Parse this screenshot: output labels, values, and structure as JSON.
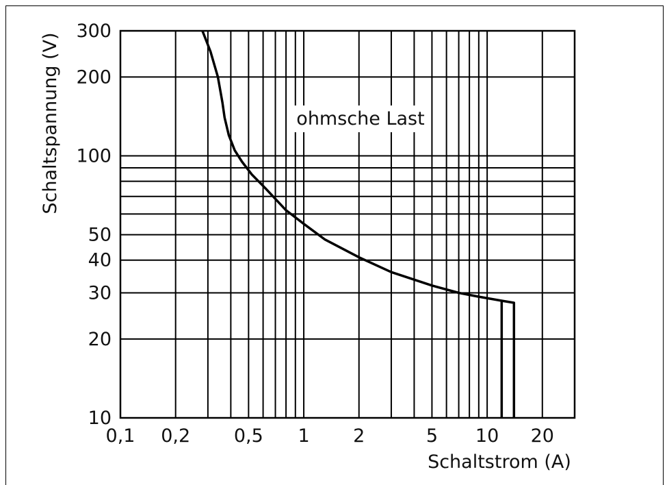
{
  "chart_data": {
    "type": "line",
    "title": "",
    "annotation": "ohmsche Last",
    "xlabel": "Schaltstrom (A)",
    "ylabel": "Schaltspannung (V)",
    "xscale": "log",
    "yscale": "log",
    "xlim": [
      0.1,
      30
    ],
    "ylim": [
      10,
      300
    ],
    "grid": true,
    "x_tick_labels": [
      "0,1",
      "0,2",
      "0,5",
      "1",
      "2",
      "5",
      "10",
      "20"
    ],
    "x_tick_values": [
      0.1,
      0.2,
      0.5,
      1,
      2,
      5,
      10,
      20
    ],
    "y_tick_labels": [
      "10",
      "20",
      "30",
      "40",
      "50",
      "100",
      "200",
      "300"
    ],
    "y_tick_values": [
      10,
      20,
      30,
      40,
      50,
      100,
      200,
      300
    ],
    "x_grid_values": [
      0.2,
      0.3,
      0.4,
      0.5,
      0.6,
      0.7,
      0.8,
      0.9,
      1,
      2,
      3,
      4,
      5,
      6,
      7,
      8,
      9,
      10,
      20
    ],
    "y_grid_values": [
      20,
      30,
      40,
      50,
      60,
      70,
      80,
      90,
      100,
      200
    ],
    "series": [
      {
        "x": [
          0.28,
          0.31,
          0.34,
          0.36,
          0.37,
          0.39,
          0.42,
          0.46,
          0.52,
          0.62,
          0.8,
          1.0,
          1.3,
          2.0,
          3.0,
          5.0,
          7.0,
          9.0,
          12.0,
          14.0,
          14.0
        ],
        "y": [
          300,
          250,
          200,
          160,
          140,
          120,
          105,
          95,
          85,
          75,
          62,
          55,
          48,
          41,
          36,
          32,
          30,
          29,
          28,
          27.5,
          10
        ]
      }
    ],
    "extra_lines": [
      {
        "x": [
          12.0,
          12.0
        ],
        "y": [
          28,
          10
        ]
      }
    ],
    "colors": {
      "line": "#000000",
      "grid": "#000000",
      "text": "#111111"
    }
  }
}
